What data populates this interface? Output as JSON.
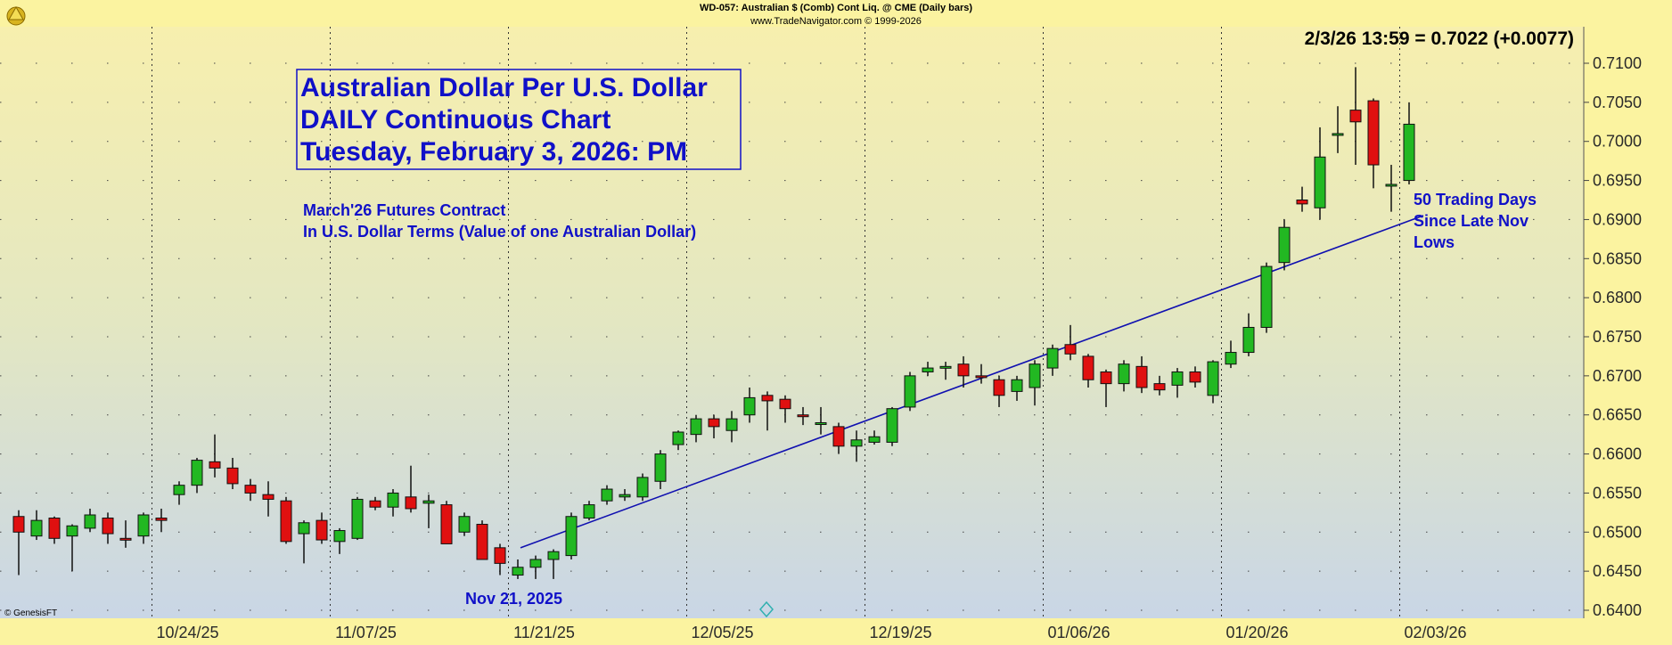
{
  "header": {
    "line1": "WD-057:  Australian $ (Comb) Cont Liq. @ CME  (Daily bars)",
    "line2": "www.TradeNavigator.com © 1999-2026"
  },
  "copyright": "© GenesisFT",
  "quote": "2/3/26 13:59 = 0.7022 (+0.0077)",
  "title_box": [
    "Australian Dollar Per U.S. Dollar",
    "DAILY Continuous Chart",
    "Tuesday, February 3, 2026: PM"
  ],
  "subtitle": [
    "March'26 Futures Contract",
    "In U.S. Dollar Terms (Value of one Australian Dollar)"
  ],
  "annotation_low": "Nov 21, 2025",
  "annotation_trend": [
    "50 Trading Days",
    "Since Late Nov",
    "Lows"
  ],
  "colors": {
    "up": "#22b822",
    "down": "#e01010",
    "trend": "#1010b0",
    "text": "#1010c8"
  },
  "chart_data": {
    "type": "candlestick",
    "ylim": [
      0.6395,
      0.712
    ],
    "y_ticks": [
      "0.6400",
      "0.6450",
      "0.6500",
      "0.6550",
      "0.6600",
      "0.6650",
      "0.6700",
      "0.6750",
      "0.6800",
      "0.6850",
      "0.6900",
      "0.6950",
      "0.7000",
      "0.7050",
      "0.7100"
    ],
    "x_ticks": [
      {
        "label": "10/24/25",
        "bar": 8
      },
      {
        "label": "11/07/25",
        "bar": 18
      },
      {
        "label": "11/21/25",
        "bar": 28
      },
      {
        "label": "12/05/25",
        "bar": 38
      },
      {
        "label": "12/19/25",
        "bar": 48
      },
      {
        "label": "01/06/26",
        "bar": 58
      },
      {
        "label": "01/20/26",
        "bar": 68
      },
      {
        "label": "02/03/26",
        "bar": 78
      }
    ],
    "bars": [
      [
        0.652,
        0.6528,
        0.6445,
        0.65
      ],
      [
        0.6495,
        0.6528,
        0.649,
        0.6515
      ],
      [
        0.6518,
        0.652,
        0.6485,
        0.6492
      ],
      [
        0.6495,
        0.651,
        0.645,
        0.6508
      ],
      [
        0.6505,
        0.653,
        0.65,
        0.6522
      ],
      [
        0.6518,
        0.6525,
        0.6485,
        0.6498
      ],
      [
        0.6492,
        0.6515,
        0.648,
        0.649
      ],
      [
        0.6495,
        0.6525,
        0.6485,
        0.6522
      ],
      [
        0.6518,
        0.653,
        0.65,
        0.6515
      ],
      [
        0.6548,
        0.6565,
        0.6535,
        0.656
      ],
      [
        0.656,
        0.6595,
        0.655,
        0.6592
      ],
      [
        0.659,
        0.6625,
        0.657,
        0.6582
      ],
      [
        0.6582,
        0.6595,
        0.6555,
        0.6562
      ],
      [
        0.656,
        0.6568,
        0.654,
        0.655
      ],
      [
        0.6548,
        0.6565,
        0.652,
        0.6542
      ],
      [
        0.654,
        0.6545,
        0.6485,
        0.6488
      ],
      [
        0.6498,
        0.6515,
        0.646,
        0.6512
      ],
      [
        0.6515,
        0.6525,
        0.6485,
        0.649
      ],
      [
        0.6488,
        0.6505,
        0.6472,
        0.6502
      ],
      [
        0.6492,
        0.6545,
        0.649,
        0.6542
      ],
      [
        0.654,
        0.6545,
        0.6528,
        0.6532
      ],
      [
        0.6532,
        0.6555,
        0.652,
        0.655
      ],
      [
        0.6545,
        0.6585,
        0.6525,
        0.653
      ],
      [
        0.6537,
        0.6548,
        0.6505,
        0.654
      ],
      [
        0.6535,
        0.654,
        0.6485,
        0.6485
      ],
      [
        0.65,
        0.6525,
        0.6495,
        0.652
      ],
      [
        0.651,
        0.6515,
        0.6465,
        0.6465
      ],
      [
        0.648,
        0.6485,
        0.6445,
        0.646
      ],
      [
        0.6445,
        0.6465,
        0.644,
        0.6455
      ],
      [
        0.6455,
        0.647,
        0.644,
        0.6465
      ],
      [
        0.6465,
        0.6478,
        0.644,
        0.6475
      ],
      [
        0.647,
        0.6525,
        0.6465,
        0.652
      ],
      [
        0.6518,
        0.654,
        0.6515,
        0.6535
      ],
      [
        0.654,
        0.656,
        0.6535,
        0.6555
      ],
      [
        0.6545,
        0.6555,
        0.654,
        0.6548
      ],
      [
        0.6545,
        0.6575,
        0.654,
        0.657
      ],
      [
        0.6565,
        0.6605,
        0.6555,
        0.66
      ],
      [
        0.6612,
        0.663,
        0.6605,
        0.6628
      ],
      [
        0.6625,
        0.665,
        0.6615,
        0.6645
      ],
      [
        0.6645,
        0.665,
        0.662,
        0.6635
      ],
      [
        0.663,
        0.6655,
        0.6615,
        0.6645
      ],
      [
        0.665,
        0.6685,
        0.664,
        0.6672
      ],
      [
        0.6675,
        0.668,
        0.663,
        0.6668
      ],
      [
        0.667,
        0.6675,
        0.664,
        0.6658
      ],
      [
        0.665,
        0.666,
        0.6637,
        0.6648
      ],
      [
        0.664,
        0.666,
        0.6625,
        0.664
      ],
      [
        0.6635,
        0.664,
        0.66,
        0.661
      ],
      [
        0.661,
        0.663,
        0.659,
        0.6618
      ],
      [
        0.6615,
        0.663,
        0.6612,
        0.6622
      ],
      [
        0.6615,
        0.666,
        0.661,
        0.6658
      ],
      [
        0.666,
        0.6705,
        0.6655,
        0.67
      ],
      [
        0.6705,
        0.6718,
        0.67,
        0.671
      ],
      [
        0.671,
        0.6718,
        0.6695,
        0.6712
      ],
      [
        0.6715,
        0.6725,
        0.6685,
        0.67
      ],
      [
        0.67,
        0.6715,
        0.669,
        0.6698
      ],
      [
        0.6695,
        0.67,
        0.666,
        0.6675
      ],
      [
        0.668,
        0.67,
        0.6668,
        0.6695
      ],
      [
        0.6685,
        0.672,
        0.6662,
        0.6715
      ],
      [
        0.671,
        0.674,
        0.67,
        0.6735
      ],
      [
        0.674,
        0.6765,
        0.672,
        0.6728
      ],
      [
        0.6725,
        0.6728,
        0.6685,
        0.6695
      ],
      [
        0.6705,
        0.6708,
        0.666,
        0.669
      ],
      [
        0.669,
        0.672,
        0.668,
        0.6715
      ],
      [
        0.6712,
        0.6725,
        0.6678,
        0.6685
      ],
      [
        0.669,
        0.67,
        0.6675,
        0.6682
      ],
      [
        0.6688,
        0.671,
        0.6672,
        0.6705
      ],
      [
        0.6705,
        0.6712,
        0.6685,
        0.6692
      ],
      [
        0.6675,
        0.672,
        0.6665,
        0.6718
      ],
      [
        0.6715,
        0.6745,
        0.671,
        0.673
      ],
      [
        0.673,
        0.678,
        0.6725,
        0.6762
      ],
      [
        0.6762,
        0.6845,
        0.6755,
        0.684
      ],
      [
        0.6845,
        0.69,
        0.6835,
        0.689
      ],
      [
        0.6925,
        0.6942,
        0.691,
        0.692
      ],
      [
        0.6915,
        0.7018,
        0.69,
        0.698
      ],
      [
        0.7008,
        0.7045,
        0.6985,
        0.701
      ],
      [
        0.704,
        0.7095,
        0.697,
        0.7025
      ],
      [
        0.7052,
        0.7055,
        0.694,
        0.697
      ],
      [
        0.6945,
        0.697,
        0.691,
        0.6945
      ],
      [
        0.695,
        0.705,
        0.6945,
        0.7022
      ]
    ],
    "trendline": {
      "from_bar": 28,
      "from_value": 0.648,
      "to_bar": 79,
      "to_value": 0.6905
    }
  }
}
